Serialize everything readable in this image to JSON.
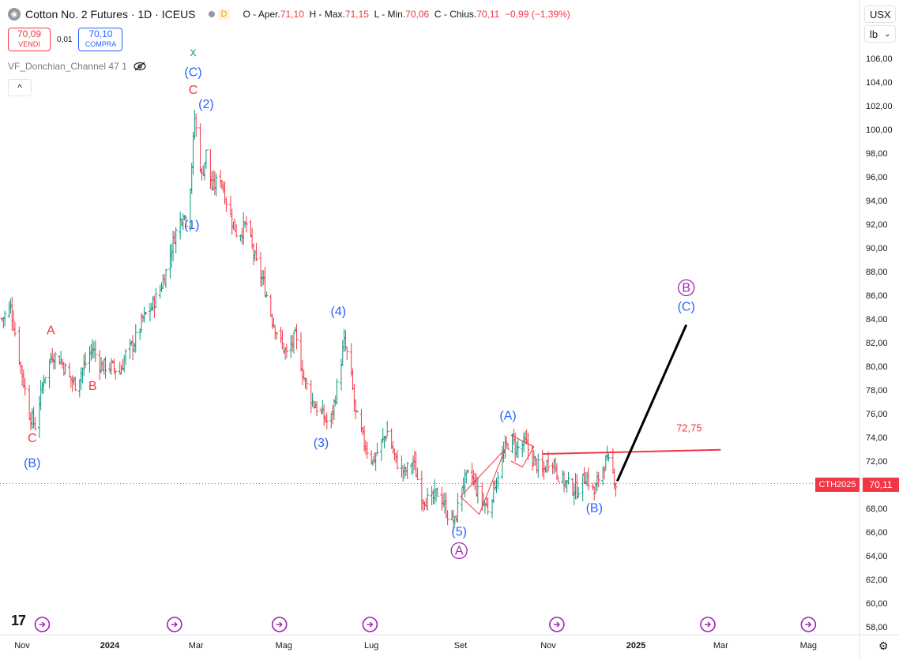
{
  "header": {
    "title": "Cotton No. 2 Futures · 1D · ICEUS",
    "flag": "D",
    "ohlc": {
      "o_label": "O - Aper.",
      "o": "71,10",
      "h_label": "H - Max.",
      "h": "71,15",
      "l_label": "L - Min.",
      "l": "70,06",
      "c_label": "C - Chius.",
      "c": "70,11",
      "chg": "−0,99 (−1,39%)"
    }
  },
  "trade": {
    "sell_price": "70,09",
    "sell_label": "VENDI",
    "spread": "0,01",
    "buy_price": "70,10",
    "buy_label": "COMPRA"
  },
  "indicator": {
    "label": "VF_Donchian_Channel 47 1"
  },
  "controls": {
    "currency": "USX",
    "unit": "lb",
    "collapse": "^"
  },
  "last_price": {
    "symbol": "CTH2025",
    "value": "70,11"
  },
  "colors": {
    "up": "#089981",
    "down": "#f23645",
    "wave_blue": "#2962ff",
    "wave_purple": "#9c27b0",
    "wave_red": "#f23645",
    "wave_green": "#22ab94",
    "projection": "#000000"
  },
  "chart_data": {
    "type": "candlestick",
    "title": "Cotton No. 2 Futures · 1D · ICEUS",
    "ylim": [
      57,
      108
    ],
    "y_ticks": [
      "106,00",
      "104,00",
      "102,00",
      "100,00",
      "98,00",
      "96,00",
      "94,00",
      "92,00",
      "90,00",
      "88,00",
      "86,00",
      "84,00",
      "82,00",
      "80,00",
      "78,00",
      "76,00",
      "74,00",
      "72,00",
      "70,00",
      "68,00",
      "66,00",
      "64,00",
      "62,00",
      "60,00",
      "58,00"
    ],
    "y_tick_values": [
      106,
      104,
      102,
      100,
      98,
      96,
      94,
      92,
      90,
      88,
      86,
      84,
      82,
      80,
      78,
      76,
      74,
      72,
      70,
      68,
      66,
      64,
      62,
      60,
      58
    ],
    "x_ticks": [
      {
        "label": "Nov",
        "date": "2023-11-01"
      },
      {
        "label": "2024",
        "date": "2024-01-01"
      },
      {
        "label": "Mar",
        "date": "2024-03-01"
      },
      {
        "label": "Mag",
        "date": "2024-05-01"
      },
      {
        "label": "Lug",
        "date": "2024-07-01"
      },
      {
        "label": "Set",
        "date": "2024-09-01"
      },
      {
        "label": "Nov",
        "date": "2024-11-01"
      },
      {
        "label": "2025",
        "date": "2025-01-01"
      },
      {
        "label": "Mar",
        "date": "2025-03-01"
      },
      {
        "label": "Mag",
        "date": "2025-05-01"
      }
    ],
    "price_path": [
      [
        "2023-10-18",
        84.0
      ],
      [
        "2023-10-24",
        85.0
      ],
      [
        "2023-10-31",
        80.0
      ],
      [
        "2023-11-06",
        76.0
      ],
      [
        "2023-11-10",
        75.0
      ],
      [
        "2023-11-16",
        79.0
      ],
      [
        "2023-11-22",
        81.0
      ],
      [
        "2023-11-28",
        80.5
      ],
      [
        "2023-12-04",
        79.0
      ],
      [
        "2023-12-08",
        78.5
      ],
      [
        "2023-12-14",
        80.0
      ],
      [
        "2023-12-20",
        81.5
      ],
      [
        "2023-12-26",
        80.0
      ],
      [
        "2024-01-02",
        80.0
      ],
      [
        "2024-01-08",
        79.5
      ],
      [
        "2024-01-12",
        81.0
      ],
      [
        "2024-01-18",
        82.0
      ],
      [
        "2024-01-24",
        84.0
      ],
      [
        "2024-01-30",
        85.0
      ],
      [
        "2024-02-05",
        86.5
      ],
      [
        "2024-02-09",
        88.0
      ],
      [
        "2024-02-15",
        91.0
      ],
      [
        "2024-02-21",
        93.0
      ],
      [
        "2024-02-24",
        92.0
      ],
      [
        "2024-02-27",
        97.0
      ],
      [
        "2024-02-29",
        101.0
      ],
      [
        "2024-03-01",
        100.0
      ],
      [
        "2024-03-05",
        96.0
      ],
      [
        "2024-03-08",
        98.0
      ],
      [
        "2024-03-12",
        95.0
      ],
      [
        "2024-03-18",
        96.0
      ],
      [
        "2024-03-24",
        93.0
      ],
      [
        "2024-03-30",
        91.0
      ],
      [
        "2024-04-05",
        92.0
      ],
      [
        "2024-04-11",
        89.0
      ],
      [
        "2024-04-17",
        87.0
      ],
      [
        "2024-04-23",
        84.0
      ],
      [
        "2024-04-29",
        82.0
      ],
      [
        "2024-05-03",
        81.0
      ],
      [
        "2024-05-09",
        82.5
      ],
      [
        "2024-05-15",
        79.0
      ],
      [
        "2024-05-21",
        77.0
      ],
      [
        "2024-05-27",
        76.0
      ],
      [
        "2024-06-02",
        75.0
      ],
      [
        "2024-06-06",
        77.5
      ],
      [
        "2024-06-12",
        82.0
      ],
      [
        "2024-06-16",
        80.0
      ],
      [
        "2024-06-20",
        76.0
      ],
      [
        "2024-06-26",
        73.5
      ],
      [
        "2024-07-02",
        72.0
      ],
      [
        "2024-07-08",
        73.5
      ],
      [
        "2024-07-12",
        74.5
      ],
      [
        "2024-07-18",
        72.0
      ],
      [
        "2024-07-24",
        71.0
      ],
      [
        "2024-07-30",
        72.0
      ],
      [
        "2024-08-05",
        69.0
      ],
      [
        "2024-08-11",
        68.5
      ],
      [
        "2024-08-17",
        69.5
      ],
      [
        "2024-08-23",
        67.5
      ],
      [
        "2024-08-28",
        66.8
      ],
      [
        "2024-09-02",
        70.0
      ],
      [
        "2024-09-08",
        71.0
      ],
      [
        "2024-09-14",
        69.0
      ],
      [
        "2024-09-20",
        68.0
      ],
      [
        "2024-09-26",
        70.5
      ],
      [
        "2024-10-02",
        73.0
      ],
      [
        "2024-10-06",
        74.0
      ],
      [
        "2024-10-10",
        73.0
      ],
      [
        "2024-10-16",
        73.5
      ],
      [
        "2024-10-22",
        72.0
      ],
      [
        "2024-10-28",
        71.0
      ],
      [
        "2024-11-03",
        72.5
      ],
      [
        "2024-11-09",
        70.5
      ],
      [
        "2024-11-15",
        70.0
      ],
      [
        "2024-11-21",
        69.5
      ],
      [
        "2024-11-27",
        70.8
      ],
      [
        "2024-12-03",
        69.3
      ],
      [
        "2024-12-07",
        71.0
      ],
      [
        "2024-12-11",
        72.0
      ],
      [
        "2024-12-15",
        71.5
      ],
      [
        "2024-12-18",
        70.1
      ]
    ],
    "horizontal_level": {
      "label": "72,75",
      "value": 72.75,
      "from": "2024-10-28",
      "to": "2025-03-01"
    },
    "projection": {
      "from": [
        "2024-12-19",
        70.3
      ],
      "to": [
        "2025-02-05",
        83.5
      ]
    },
    "wave_labels": [
      {
        "text": "x",
        "date": "2024-02-28",
        "price": 106.2,
        "color": "green"
      },
      {
        "text": "(C)",
        "date": "2024-02-28",
        "price": 104.5,
        "color": "blue"
      },
      {
        "text": "C",
        "date": "2024-02-28",
        "price": 103.0,
        "color": "red"
      },
      {
        "text": "(2)",
        "date": "2024-03-08",
        "price": 101.8,
        "color": "blue"
      },
      {
        "text": "(1)",
        "date": "2024-02-27",
        "price": 91.6,
        "color": "blue"
      },
      {
        "text": "A",
        "date": "2023-11-21",
        "price": 82.7,
        "color": "red"
      },
      {
        "text": "B",
        "date": "2023-12-20",
        "price": 78.0,
        "color": "red"
      },
      {
        "text": "C",
        "date": "2023-11-08",
        "price": 73.6,
        "color": "red"
      },
      {
        "text": "(B)",
        "date": "2023-11-08",
        "price": 71.5,
        "color": "blue"
      },
      {
        "text": "(4)",
        "date": "2024-06-08",
        "price": 84.3,
        "color": "blue"
      },
      {
        "text": "(3)",
        "date": "2024-05-27",
        "price": 73.2,
        "color": "blue"
      },
      {
        "text": "(5)",
        "date": "2024-08-31",
        "price": 65.7,
        "color": "blue"
      },
      {
        "text": "A",
        "date": "2024-08-31",
        "price": 64.1,
        "color": "purple",
        "circled": true
      },
      {
        "text": "(A)",
        "date": "2024-10-04",
        "price": 75.5,
        "color": "blue"
      },
      {
        "text": "(B)",
        "date": "2024-12-03",
        "price": 67.7,
        "color": "blue"
      },
      {
        "text": "B",
        "date": "2025-02-05",
        "price": 86.3,
        "color": "purple",
        "circled": true
      },
      {
        "text": "(C)",
        "date": "2025-02-05",
        "price": 84.7,
        "color": "blue"
      }
    ]
  }
}
